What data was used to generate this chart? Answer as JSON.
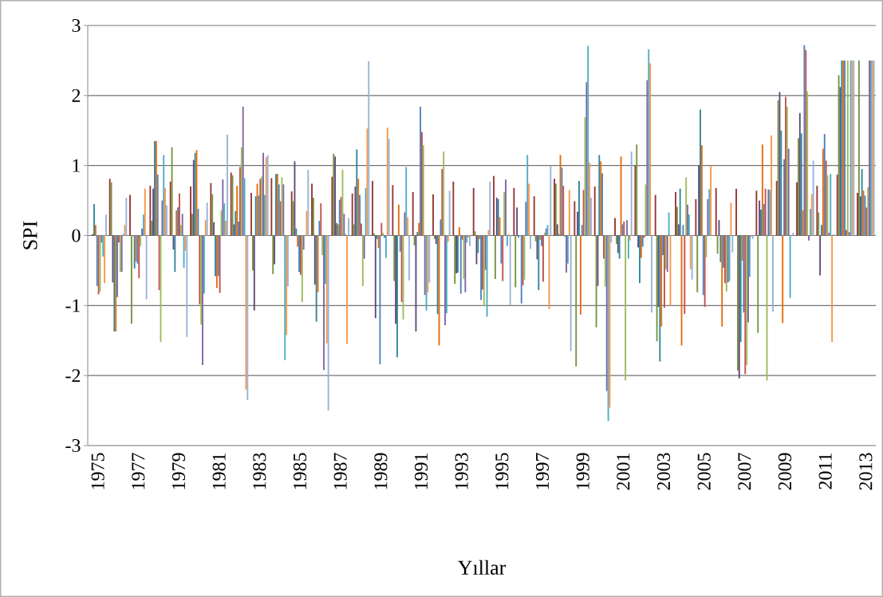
{
  "chart_data": {
    "type": "bar",
    "xlabel": "Yıllar",
    "ylabel": "SPI",
    "categories": [
      "1975",
      null,
      "1977",
      null,
      "1979",
      null,
      "1981",
      null,
      "1983",
      null,
      "1985",
      null,
      "1987",
      null,
      "1989",
      null,
      "1991",
      null,
      "1993",
      null,
      "1995",
      null,
      "1997",
      null,
      "1999",
      null,
      "2001",
      null,
      "2003",
      null,
      "2005",
      null,
      "2007",
      null,
      "2009",
      null,
      "2011",
      null,
      "2013"
    ],
    "ylim": [
      -3,
      3
    ],
    "yticks": [
      -3,
      -2,
      -1,
      0,
      1,
      2,
      3
    ],
    "grid": "y",
    "series": [
      {
        "color": "#943634",
        "values": [
          0,
          0.81,
          0.58,
          0.71,
          0.77,
          0.7,
          0.75,
          0.9,
          0.61,
          0.82,
          0.63,
          0.74,
          0.84,
          0.6,
          0.78,
          0.72,
          0.62,
          0.59,
          0.77,
          0.68,
          0.85,
          0.68,
          0.56,
          0.81,
          0.49,
          0.7,
          0.25,
          1.0,
          0.58,
          0.62,
          0.52,
          0.68,
          0.67,
          0.64,
          0.78,
          0.76,
          0.71,
          0.87,
          0.61
        ]
      },
      {
        "color": "#77933C",
        "values": [
          0,
          0.76,
          -1.26,
          0.21,
          1.26,
          0.31,
          0.59,
          0.86,
          -0.5,
          -0.55,
          0.49,
          0.54,
          1.17,
          0.16,
          0.03,
          -0.65,
          -0.14,
          -0.05,
          -0.69,
          0.06,
          -0.62,
          -0.74,
          -0.08,
          0.74,
          -1.87,
          -1.31,
          -0.12,
          1.3,
          -1.51,
          0.41,
          -0.81,
          -0.26,
          -1.93,
          -1.39,
          1.93,
          1.39,
          0.33,
          2.29,
          2.5
        ]
      },
      {
        "color": "#5F497A",
        "values": [
          0.02,
          -0.67,
          0,
          0.67,
          -0.2,
          1.08,
          0.19,
          0.16,
          -1.07,
          -0.41,
          1.06,
          -0.7,
          1.13,
          0.7,
          -1.18,
          -1.26,
          -1.37,
          -0.12,
          -0.54,
          -0.41,
          0.54,
          0.4,
          -0.34,
          0.16,
          0.34,
          -0.72,
          -0.25,
          -0.17,
          -1.02,
          0.16,
          1.0,
          0.22,
          -2.04,
          0.5,
          2.05,
          1.75,
          -0.57,
          2.12,
          0.56
        ]
      },
      {
        "color": "#31859C",
        "values": [
          0.45,
          -1.37,
          -0.47,
          1.35,
          -0.52,
          1.18,
          -0.58,
          0.35,
          0.56,
          0.88,
          0.1,
          -1.23,
          0.18,
          1.23,
          -0.05,
          -1.74,
          0.05,
          -1.12,
          -0.53,
          -0.25,
          0.52,
          -0.03,
          -0.78,
          0.02,
          0.78,
          1.15,
          -0.33,
          -0.68,
          -1.8,
          0.67,
          1.8,
          -0.38,
          -1.52,
          0.37,
          1.5,
          1.46,
          0.15,
          2.5,
          0.95
        ]
      },
      {
        "color": "#E46C0A",
        "values": [
          0.15,
          -1.37,
          -0.37,
          1.35,
          0.36,
          1.22,
          -0.75,
          0.71,
          0.74,
          0.88,
          -0.16,
          -0.81,
          0.16,
          0.81,
          -0.18,
          0.44,
          0.18,
          -1.57,
          0.12,
          -0.05,
          0.26,
          0,
          -0.06,
          1.15,
          -1.13,
          1.06,
          1.13,
          -0.32,
          -1.3,
          -1.57,
          1.29,
          -1.3,
          -0.36,
          1.3,
          -1.25,
          0.36,
          1.24,
          2.5,
          0.64
        ]
      },
      {
        "color": "#4F81BD",
        "values": [
          -0.72,
          -0.88,
          -0.4,
          0.87,
          0.4,
          0.38,
          -0.58,
          0.2,
          0.57,
          0.73,
          -0.52,
          0.21,
          0.51,
          0.58,
          -1.84,
          -0.23,
          1.84,
          0.23,
          -0.83,
          -0.92,
          -0.4,
          -0.97,
          -0.15,
          0.97,
          0.15,
          0.89,
          0.16,
          -0.16,
          -0.28,
          0.15,
          -0.85,
          -0.46,
          -1.1,
          0.45,
          1.09,
          2.72,
          1.45,
          2.5,
          0.57
        ]
      },
      {
        "color": "#C0504D",
        "values": [
          -0.84,
          -0.1,
          -0.61,
          -0.78,
          0.6,
          -0.98,
          -0.82,
          0.98,
          0.81,
          0.49,
          -0.56,
          0.46,
          0.55,
          0.17,
          0.18,
          -0.95,
          1.48,
          0.95,
          -0.06,
          -0.77,
          -0.65,
          -0.71,
          -0.66,
          0.71,
          0.65,
          -0.33,
          0.2,
          -0.03,
          -1.03,
          -1.12,
          -1.02,
          -0.68,
          -1.98,
          0.67,
          1.98,
          2.65,
          1.07,
          0.08,
          0.4
        ]
      },
      {
        "color": "#9BBB59",
        "values": [
          -0.8,
          -0.52,
          -0.15,
          -1.52,
          0.15,
          -1.27,
          0.36,
          1.26,
          0.84,
          0.83,
          -0.95,
          -0.28,
          0.94,
          -0.72,
          0.04,
          -1.2,
          1.29,
          1.2,
          -0.62,
          -1.01,
          0.62,
          -0.63,
          0.04,
          -0.02,
          1.69,
          -0.73,
          -2.07,
          0.73,
          -0.48,
          0.83,
          -0.31,
          -0.8,
          -1.85,
          -2.07,
          1.84,
          2.06,
          0.86,
          2.5,
          0.69
        ]
      },
      {
        "color": "#8064A2",
        "values": [
          -0.1,
          -0.52,
          0.1,
          0.5,
          0.31,
          -1.85,
          0.8,
          1.84,
          1.18,
          0.73,
          -0.2,
          -1.92,
          0.31,
          -0.33,
          -0.03,
          0.33,
          -0.85,
          -1.28,
          -0.81,
          -0.49,
          0.8,
          0.48,
          0.1,
          -0.53,
          2.19,
          -2.22,
          0.22,
          2.22,
          -0.52,
          0.44,
          0.52,
          -0.67,
          -1.24,
          0.66,
          1.24,
          -0.07,
          0.04,
          0.05,
          2.5
        ]
      },
      {
        "color": "#4BACC6",
        "values": [
          -0.3,
          0.02,
          0.3,
          1.15,
          -0.46,
          -0.83,
          0.46,
          0.82,
          0.58,
          -1.78,
          0,
          -0.69,
          0.02,
          0.68,
          -0.32,
          0.98,
          -1.07,
          -1.11,
          -0.1,
          -1.16,
          -0.15,
          1.15,
          0.15,
          -0.4,
          2.71,
          -2.65,
          -0.33,
          2.66,
          0.33,
          0.3,
          0.66,
          -0.65,
          -0.59,
          0.65,
          -0.89,
          0.38,
          0.88,
          2.5,
          2.5
        ]
      },
      {
        "color": "#F79646",
        "values": [
          -0.68,
          0.15,
          0.67,
          0.68,
          -0.22,
          0.22,
          0.21,
          -2.2,
          1.12,
          -1.42,
          0.35,
          -1.54,
          -1.55,
          1.53,
          1.54,
          0.26,
          -0.81,
          -0.09,
          -0.03,
          0.08,
          0.02,
          0.74,
          -1.05,
          0.65,
          1.04,
          -2.46,
          -0.07,
          2.46,
          -1.0,
          -0.48,
          0.99,
          0.47,
          -0.02,
          1.43,
          0,
          0.59,
          -1.52,
          2.5,
          2.5
        ]
      },
      {
        "color": "#95B3D7",
        "values": [
          0.3,
          0.54,
          -0.91,
          0.43,
          -1.45,
          0.47,
          1.44,
          -2.35,
          1.15,
          -0.73,
          0.94,
          -2.5,
          0.25,
          2.49,
          1.38,
          -0.64,
          -0.67,
          0.64,
          -0.15,
          0.77,
          -1.0,
          -0.19,
          1.0,
          -1.65,
          0.54,
          -0.1,
          1.2,
          -1.1,
          0,
          -0.63,
          0,
          -0.24,
          -0.05,
          -1.09,
          0.04,
          1.07,
          0.02,
          2.5,
          2.5
        ]
      }
    ]
  }
}
